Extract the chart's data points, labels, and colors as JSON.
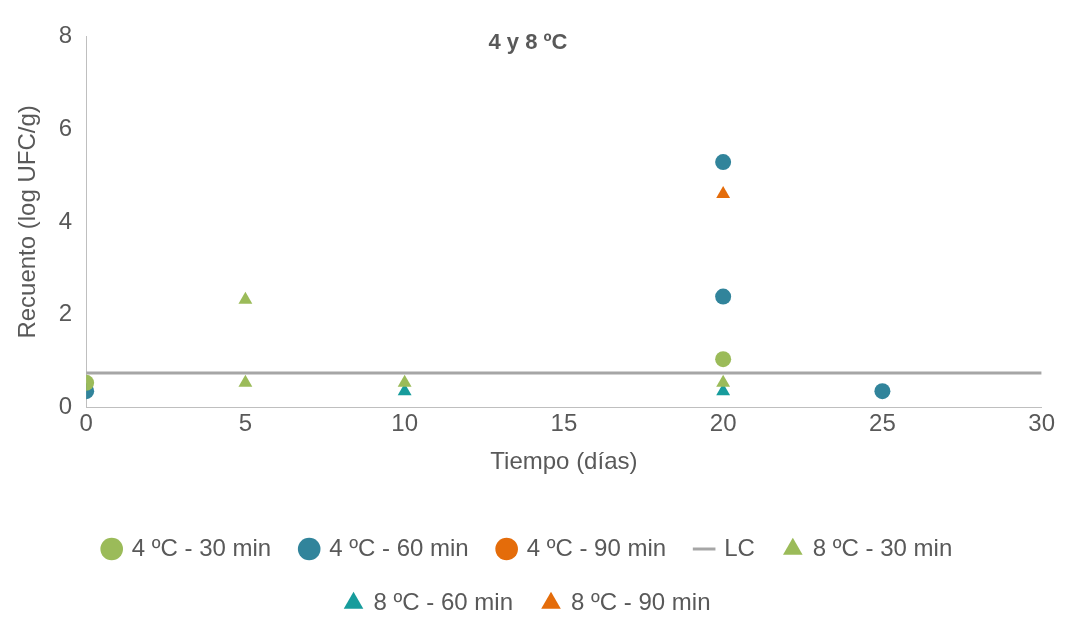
{
  "chart_data": {
    "type": "scatter",
    "title": "4 y 8 ºC",
    "xlabel": "Tiempo (días)",
    "ylabel": "Recuento (log UFC/g)",
    "xlim": [
      0,
      30
    ],
    "xticks": [
      0,
      5,
      10,
      15,
      20,
      25,
      30
    ],
    "ylim": [
      0,
      8
    ],
    "yticks": [
      0,
      2,
      4,
      6,
      8
    ],
    "grid": false,
    "legend": "bottom",
    "series": [
      {
        "name": "4 ºC - 30 min",
        "color": "#9bbb59",
        "marker": "circle",
        "x": [
          0,
          20
        ],
        "values": [
          0.53,
          1.04
        ]
      },
      {
        "name": "4 ºC - 60 min",
        "color": "#31849b",
        "marker": "circle",
        "x": [
          0,
          20,
          20,
          25
        ],
        "values": [
          0.35,
          5.29,
          2.39,
          0.35
        ]
      },
      {
        "name": "4 ºC - 90 min",
        "color": "#e46c0a",
        "marker": "circle"
      },
      {
        "name": "LC",
        "type": "line",
        "color": "#a6a6a6",
        "marker": "none",
        "x": [
          0,
          30
        ],
        "values": [
          0.74,
          0.74
        ]
      },
      {
        "name": "8 ºC - 30 min",
        "color": "#9bbb59",
        "marker": "triangle",
        "x": [
          5,
          5,
          10,
          20
        ],
        "values": [
          2.32,
          0.53,
          0.53,
          0.53
        ]
      },
      {
        "name": "8 ºC - 60 min",
        "color": "#179c9c",
        "marker": "triangle",
        "x": [
          10,
          20
        ],
        "values": [
          0.35,
          0.35
        ]
      },
      {
        "name": "8 ºC - 90 min",
        "color": "#e46c0a",
        "marker": "triangle",
        "x": [
          20
        ],
        "values": [
          4.6
        ]
      }
    ]
  }
}
